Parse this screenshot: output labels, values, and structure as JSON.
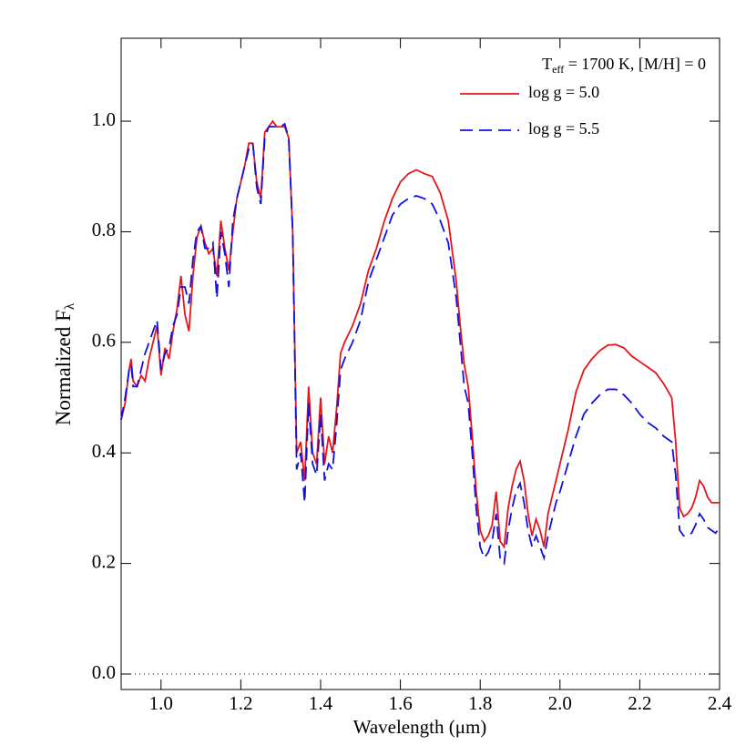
{
  "chart_data": {
    "type": "line",
    "xlabel": "Wavelength (μm)",
    "ylabel": {
      "text": "Normalized F",
      "sub": "λ"
    },
    "annotation": {
      "base": "T",
      "sub": "eff",
      "rest": " = 1700 K, [M/H] = 0"
    },
    "legend": "upper right",
    "hline": 0,
    "xlim": [
      0.9,
      2.4
    ],
    "ylim": [
      -0.028,
      1.15
    ],
    "xticks": [
      {
        "value": 1,
        "label": "1.0"
      },
      1.2,
      1.4,
      1.6,
      1.8,
      {
        "value": 2,
        "label": "2.0"
      },
      2.2,
      2.4
    ],
    "yticks": [
      {
        "value": 0,
        "label": "0.0"
      },
      0.2,
      0.4,
      0.6,
      0.8,
      {
        "value": 1,
        "label": "1.0"
      }
    ],
    "x": [
      0.9,
      0.91,
      0.92,
      0.925,
      0.93,
      0.94,
      0.95,
      0.96,
      0.97,
      0.98,
      0.99,
      1.0,
      1.01,
      1.02,
      1.03,
      1.04,
      1.05,
      1.06,
      1.07,
      1.08,
      1.09,
      1.1,
      1.11,
      1.12,
      1.13,
      1.14,
      1.15,
      1.16,
      1.17,
      1.18,
      1.19,
      1.2,
      1.21,
      1.22,
      1.23,
      1.24,
      1.25,
      1.26,
      1.27,
      1.28,
      1.29,
      1.3,
      1.31,
      1.32,
      1.33,
      1.34,
      1.35,
      1.36,
      1.37,
      1.38,
      1.39,
      1.4,
      1.41,
      1.42,
      1.43,
      1.44,
      1.45,
      1.46,
      1.48,
      1.5,
      1.52,
      1.54,
      1.56,
      1.58,
      1.6,
      1.62,
      1.64,
      1.66,
      1.68,
      1.7,
      1.72,
      1.74,
      1.75,
      1.76,
      1.77,
      1.78,
      1.79,
      1.8,
      1.81,
      1.82,
      1.83,
      1.84,
      1.85,
      1.86,
      1.87,
      1.88,
      1.89,
      1.9,
      1.91,
      1.92,
      1.93,
      1.94,
      1.95,
      1.96,
      1.97,
      1.98,
      1.99,
      2.0,
      2.02,
      2.04,
      2.06,
      2.08,
      2.1,
      2.12,
      2.14,
      2.16,
      2.18,
      2.2,
      2.22,
      2.24,
      2.26,
      2.28,
      2.29,
      2.3,
      2.31,
      2.32,
      2.33,
      2.34,
      2.35,
      2.36,
      2.37,
      2.38,
      2.39,
      2.4
    ],
    "series": [
      {
        "name": "log g = 5.0",
        "color": "#e8141b",
        "dash": "none",
        "values": [
          0.46,
          0.49,
          0.55,
          0.57,
          0.53,
          0.52,
          0.54,
          0.53,
          0.57,
          0.6,
          0.63,
          0.54,
          0.59,
          0.57,
          0.62,
          0.66,
          0.72,
          0.65,
          0.62,
          0.72,
          0.79,
          0.81,
          0.78,
          0.76,
          0.77,
          0.72,
          0.82,
          0.77,
          0.73,
          0.8,
          0.86,
          0.89,
          0.92,
          0.96,
          0.96,
          0.89,
          0.86,
          0.98,
          0.99,
          1.0,
          0.99,
          0.99,
          0.99,
          0.97,
          0.8,
          0.4,
          0.42,
          0.35,
          0.52,
          0.4,
          0.38,
          0.5,
          0.38,
          0.43,
          0.4,
          0.48,
          0.58,
          0.6,
          0.63,
          0.67,
          0.73,
          0.77,
          0.82,
          0.86,
          0.89,
          0.905,
          0.912,
          0.905,
          0.9,
          0.87,
          0.82,
          0.71,
          0.63,
          0.56,
          0.52,
          0.43,
          0.33,
          0.26,
          0.24,
          0.25,
          0.27,
          0.33,
          0.24,
          0.23,
          0.3,
          0.34,
          0.37,
          0.385,
          0.35,
          0.29,
          0.25,
          0.28,
          0.26,
          0.23,
          0.29,
          0.32,
          0.35,
          0.38,
          0.44,
          0.51,
          0.55,
          0.57,
          0.585,
          0.595,
          0.596,
          0.59,
          0.575,
          0.565,
          0.555,
          0.545,
          0.525,
          0.5,
          0.42,
          0.3,
          0.285,
          0.29,
          0.3,
          0.32,
          0.35,
          0.34,
          0.32,
          0.31,
          0.31,
          0.31
        ]
      },
      {
        "name": "log g = 5.5",
        "color": "#1010e0",
        "dash": "14 7",
        "values": [
          0.46,
          0.5,
          0.55,
          0.56,
          0.52,
          0.52,
          0.55,
          0.58,
          0.6,
          0.62,
          0.64,
          0.55,
          0.58,
          0.59,
          0.63,
          0.65,
          0.7,
          0.7,
          0.67,
          0.75,
          0.8,
          0.81,
          0.77,
          0.77,
          0.78,
          0.68,
          0.8,
          0.76,
          0.7,
          0.82,
          0.86,
          0.89,
          0.92,
          0.95,
          0.96,
          0.88,
          0.85,
          0.97,
          0.99,
          0.99,
          0.99,
          0.99,
          0.995,
          0.97,
          0.8,
          0.37,
          0.4,
          0.31,
          0.49,
          0.38,
          0.36,
          0.47,
          0.35,
          0.38,
          0.37,
          0.45,
          0.55,
          0.57,
          0.6,
          0.64,
          0.71,
          0.75,
          0.79,
          0.83,
          0.85,
          0.86,
          0.865,
          0.86,
          0.85,
          0.82,
          0.78,
          0.68,
          0.6,
          0.52,
          0.49,
          0.4,
          0.3,
          0.23,
          0.21,
          0.22,
          0.24,
          0.29,
          0.21,
          0.2,
          0.26,
          0.3,
          0.33,
          0.345,
          0.31,
          0.26,
          0.23,
          0.25,
          0.23,
          0.21,
          0.25,
          0.28,
          0.31,
          0.33,
          0.38,
          0.43,
          0.47,
          0.49,
          0.505,
          0.515,
          0.515,
          0.505,
          0.49,
          0.47,
          0.455,
          0.445,
          0.43,
          0.42,
          0.36,
          0.26,
          0.25,
          0.25,
          0.255,
          0.27,
          0.29,
          0.28,
          0.265,
          0.26,
          0.255,
          0.265
        ]
      }
    ]
  }
}
